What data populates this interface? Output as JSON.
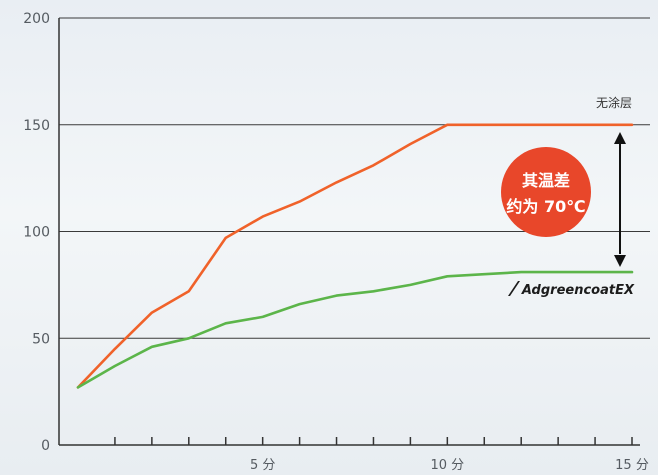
{
  "chart_data": {
    "type": "line",
    "xlim": [
      0,
      15
    ],
    "ylim": [
      0,
      200
    ],
    "y_ticks": [
      "0",
      "50",
      "100",
      "150",
      "200"
    ],
    "x_ticks": [
      {
        "x": 5,
        "label": "5 分"
      },
      {
        "x": 10,
        "label": "10 分"
      },
      {
        "x": 15,
        "label": "15 分"
      }
    ],
    "x_minor_ticks": [
      1,
      2,
      3,
      4,
      5,
      6,
      7,
      8,
      9,
      10,
      11,
      12,
      13,
      14,
      15
    ],
    "grid": "horizontal",
    "series": [
      {
        "name": "无涂层",
        "color": "#f0622a",
        "x": [
          0,
          1,
          2,
          3,
          4,
          5,
          6,
          7,
          8,
          9,
          10,
          11,
          12,
          13,
          14,
          15
        ],
        "y": [
          27,
          45,
          62,
          72,
          97,
          107,
          114,
          123,
          131,
          141,
          150,
          150,
          150,
          150,
          150,
          150
        ]
      },
      {
        "name": "AdgreencoatEX",
        "color": "#5cb54a",
        "x": [
          0,
          1,
          2,
          3,
          4,
          5,
          6,
          7,
          8,
          9,
          10,
          11,
          12,
          13,
          14,
          15
        ],
        "y": [
          27,
          37,
          46,
          50,
          57,
          60,
          66,
          70,
          72,
          75,
          79,
          80,
          81,
          81,
          81,
          81
        ]
      }
    ],
    "annotation": {
      "lines": [
        "其温差",
        "约为 70℃"
      ],
      "color": "#e8472a",
      "from": 150,
      "to": 81
    }
  }
}
